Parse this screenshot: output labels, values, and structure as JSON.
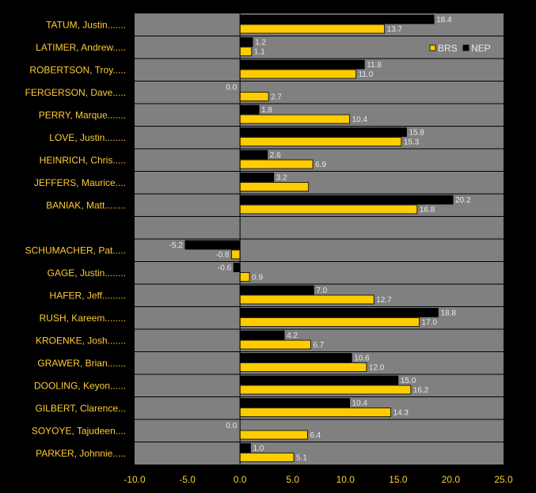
{
  "chart_data": {
    "type": "bar",
    "orientation": "horizontal",
    "categories": [
      "TATUM, Justin.......",
      "LATIMER, Andrew.....",
      "ROBERTSON, Troy.....",
      "FERGERSON, Dave.....",
      "PERRY, Marque.......",
      "LOVE, Justin........",
      "HEINRICH, Chris.....",
      "JEFFERS, Maurice....",
      "BANIAK, Matt........",
      "",
      "SCHUMACHER, Pat.....",
      "GAGE, Justin........",
      "HAFER, Jeff.........",
      "RUSH, Kareem........",
      "KROENKE, Josh.......",
      "GRAWER, Brian.......",
      "DOOLING, Keyon......",
      "GILBERT, Clarence...",
      "SOYOYE, Tajudeen....",
      "PARKER, Johnnie....."
    ],
    "series": [
      {
        "name": "NEP",
        "color": "#000000",
        "values": [
          18.4,
          1.2,
          11.8,
          0.0,
          1.8,
          15.8,
          2.6,
          3.2,
          20.2,
          null,
          -5.2,
          -0.6,
          7.0,
          18.8,
          4.2,
          10.6,
          15.0,
          10.4,
          0.0,
          1.0
        ],
        "labels": [
          "18.4",
          "1.2",
          "11.8",
          "0.0",
          "1.8",
          "15.8",
          "2.6",
          "3.2",
          "20.2",
          "",
          "-5.2",
          "-0.6",
          "7.0",
          "18.8",
          "4.2",
          "10.6",
          "15.0",
          "10.4",
          "0.0",
          "1.0"
        ]
      },
      {
        "name": "BRS",
        "color": "#FFCC00",
        "values": [
          13.7,
          1.1,
          11.0,
          2.7,
          10.4,
          15.3,
          6.9,
          6.5,
          16.8,
          null,
          -0.8,
          0.9,
          12.7,
          17.0,
          6.7,
          12.0,
          16.2,
          14.3,
          6.4,
          5.1
        ],
        "labels": [
          "13.7",
          "1.1",
          "11.0",
          "2.7",
          "10.4",
          "15.3",
          "6.9",
          "",
          "16.8",
          "",
          "-0.8",
          "0.9",
          "12.7",
          "17.0",
          "6.7",
          "12.0",
          "16.2",
          "14.3",
          "6.4",
          "5.1"
        ]
      }
    ],
    "legend_order": [
      "BRS",
      "NEP"
    ],
    "legend_position": "top-right",
    "xlim": [
      -10,
      25
    ],
    "xticks": [
      -10,
      -5,
      0,
      5,
      10,
      15,
      20,
      25
    ],
    "xtick_labels": [
      "-10.0",
      "-5.0",
      "0.0",
      "5.0",
      "10.0",
      "15.0",
      "20.0",
      "25.0"
    ],
    "grid": "horizontal row separators",
    "title": "",
    "xlabel": "",
    "ylabel": ""
  },
  "colors": {
    "background": "#000000",
    "plot_area": "#808080",
    "separator": "#000000",
    "label_text": "#FFCC33",
    "value_text": "#E8E8E8"
  }
}
